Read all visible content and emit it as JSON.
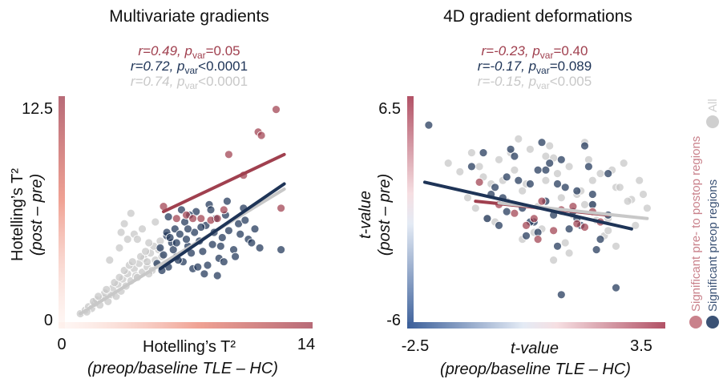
{
  "colors": {
    "red": "#a0404f",
    "navy": "#1e3457",
    "gray": "#c8c8c8"
  },
  "legend": {
    "entries": [
      {
        "label": "Significant pre- to postop regions",
        "color": "#c9818b"
      },
      {
        "label": "Significant preop regions",
        "color": "#3b5275"
      },
      {
        "label": "All",
        "color": "#cfcfcf"
      }
    ],
    "placement": "right, vertical"
  },
  "chart_data": [
    {
      "type": "scatter",
      "title": "Multivariate gradients",
      "stats": [
        {
          "r_text": "r=0.49, ",
          "p_text": "p",
          "p_sub": "var",
          "p_val": "=0.05",
          "color": "#a0404f"
        },
        {
          "r_text": "r=0.72, ",
          "p_text": "p",
          "p_sub": "var",
          "p_val": "<0.0001",
          "color": "#1e3457"
        },
        {
          "r_text": "r=0.74, ",
          "p_text": "p",
          "p_sub": "var",
          "p_val": "<0.0001",
          "color": "#c8c8c8"
        }
      ],
      "xlabel_line1": "Hotelling’s T²",
      "xlabel_line2": "(preop/baseline TLE – HC)",
      "ylabel_line1": "Hotelling’s T²",
      "ylabel_line2": "(post – pre)",
      "xlim": [
        0,
        14
      ],
      "ylim": [
        0,
        12.5
      ],
      "x_tick_labels": [
        "0",
        "14"
      ],
      "y_tick_labels": [
        "0",
        "12.5"
      ],
      "series": [
        {
          "name": "All",
          "color": "#c8c8c8",
          "x": [
            0.5,
            0.8,
            1.0,
            1.2,
            1.4,
            1.5,
            1.7,
            1.9,
            2.0,
            2.2,
            2.4,
            2.5,
            2.7,
            2.8,
            3.0,
            3.1,
            3.3,
            3.4,
            3.6,
            3.8,
            3.9,
            4.1,
            4.3,
            4.4,
            4.6,
            4.8,
            4.9,
            5.1,
            5.3,
            5.5,
            0.9,
            1.3,
            1.6,
            2.1,
            2.6,
            2.9,
            3.2,
            3.5,
            3.7,
            4.0,
            4.2,
            4.5,
            4.7,
            5.0,
            5.2,
            5.4,
            2.3,
            2.9,
            3.4,
            3.8,
            4.3,
            4.7,
            5.1,
            3.0,
            3.6,
            4.0,
            4.6,
            3.2
          ],
          "y": [
            0.3,
            0.5,
            0.7,
            0.6,
            0.9,
            1.1,
            0.8,
            1.2,
            1.5,
            1.0,
            1.4,
            1.8,
            1.3,
            2.0,
            1.6,
            2.3,
            1.9,
            2.6,
            2.2,
            2.9,
            2.5,
            3.2,
            2.7,
            3.5,
            3.0,
            3.8,
            2.8,
            3.4,
            4.0,
            3.6,
            0.4,
            1.0,
            1.3,
            1.7,
            2.1,
            2.4,
            2.8,
            3.1,
            3.3,
            2.4,
            3.6,
            3.9,
            2.6,
            4.2,
            3.1,
            4.5,
            3.4,
            4.1,
            4.6,
            4.9,
            5.2,
            4.4,
            5.6,
            5.0,
            6.1,
            4.6,
            3.3,
            5.5
          ]
        },
        {
          "name": "Significant preop regions",
          "color": "#1e3457",
          "x": [
            5.2,
            5.4,
            5.6,
            5.8,
            5.9,
            6.1,
            6.3,
            6.4,
            6.6,
            6.8,
            6.9,
            7.1,
            7.3,
            7.5,
            7.6,
            7.8,
            8.0,
            8.2,
            8.4,
            8.6,
            8.8,
            9.0,
            9.2,
            9.4,
            9.6,
            9.9,
            10.2,
            10.5,
            10.8,
            11.2,
            5.5,
            5.9,
            6.2,
            6.7,
            7.0,
            7.4,
            7.9,
            8.3,
            8.7,
            9.1,
            9.5,
            10.0,
            10.6,
            11.0,
            5.8,
            6.5,
            7.2,
            8.1,
            9.3,
            10.3,
            6.0,
            7.7,
            8.9,
            11.5,
            12.8,
            6.4,
            7.1,
            8.5
          ],
          "y": [
            3.2,
            4.1,
            3.7,
            4.8,
            3.0,
            4.4,
            5.2,
            3.6,
            4.9,
            3.3,
            5.6,
            4.2,
            3.8,
            5.0,
            6.2,
            4.5,
            3.9,
            5.4,
            6.6,
            4.3,
            5.8,
            3.5,
            4.7,
            6.0,
            5.1,
            4.0,
            5.5,
            6.4,
            4.6,
            5.2,
            2.8,
            5.9,
            4.0,
            6.3,
            4.6,
            2.9,
            5.3,
            3.1,
            5.0,
            4.2,
            6.8,
            3.6,
            5.7,
            4.4,
            5.0,
            3.4,
            6.0,
            2.6,
            3.3,
            4.9,
            4.7,
            3.0,
            2.5,
            4.1,
            4.0,
            4.4,
            5.2,
            6.3
          ]
        },
        {
          "name": "Significant pre- to postop regions",
          "color": "#a0404f",
          "x": [
            5.6,
            6.4,
            7.0,
            7.4,
            7.9,
            8.5,
            8.9,
            9.6,
            9.3,
            10.5,
            11.4,
            11.6,
            12.5,
            12.8
          ],
          "y": [
            6.5,
            5.8,
            6.0,
            5.8,
            5.8,
            5.7,
            5.8,
            9.5,
            6.3,
            8.3,
            10.8,
            10.6,
            12.1,
            6.4
          ]
        }
      ],
      "fits": [
        {
          "name": "Significant pre- to postop regions",
          "color": "#a0404f",
          "x": [
            5.6,
            13.0
          ],
          "y": [
            6.2,
            9.5
          ]
        },
        {
          "name": "All",
          "color": "#c8c8c8",
          "x": [
            0.5,
            13.0
          ],
          "y": [
            0.3,
            7.5
          ]
        },
        {
          "name": "Significant preop regions",
          "color": "#1e3457",
          "x": [
            5.4,
            13.0
          ],
          "y": [
            2.9,
            7.8
          ]
        }
      ]
    },
    {
      "type": "scatter",
      "title": "4D gradient deformations",
      "stats": [
        {
          "r_text": "r=-0.23, ",
          "p_text": "p",
          "p_sub": "var",
          "p_val": "=0.40",
          "color": "#a0404f"
        },
        {
          "r_text": "r=-0.17, ",
          "p_text": "p",
          "p_sub": "var",
          "p_val": "=0.089",
          "color": "#1e3457"
        },
        {
          "r_text": "r=-0.15, ",
          "p_text": "p",
          "p_sub": "var",
          "p_val": "<0.005",
          "color": "#c8c8c8"
        }
      ],
      "xlabel_line1": "t-value",
      "xlabel_line2": "(preop/baseline TLE – HC)",
      "ylabel_line1": "t-value",
      "ylabel_line2": "(post – pre)",
      "xlim": [
        -2.5,
        3.5
      ],
      "ylim": [
        -6,
        6.5
      ],
      "x_tick_labels": [
        "-2.5",
        "3.5"
      ],
      "y_tick_labels": [
        "-6",
        "6.5"
      ],
      "series": [
        {
          "name": "All",
          "color": "#c8c8c8",
          "x": [
            -1.9,
            -1.6,
            -1.3,
            -1.0,
            -0.8,
            -0.6,
            -0.4,
            -0.2,
            0.0,
            0.2,
            0.4,
            0.6,
            0.8,
            1.0,
            1.2,
            1.4,
            1.6,
            1.8,
            2.0,
            2.2,
            2.4,
            2.6,
            2.8,
            3.0,
            3.2,
            -1.4,
            -1.1,
            -0.7,
            -0.3,
            0.1,
            0.5,
            0.9,
            1.3,
            1.7,
            2.1,
            2.5,
            2.9,
            -0.9,
            -0.5,
            0.3,
            0.7,
            1.1,
            1.5,
            1.9,
            2.3,
            2.7,
            3.1,
            -1.2,
            0.0,
            0.6,
            1.2,
            1.8,
            2.4,
            0.8,
            1.6,
            2.2,
            -0.1,
            1.0
          ],
          "y": [
            3.0,
            2.5,
            3.6,
            2.2,
            1.8,
            3.2,
            0.8,
            2.6,
            1.4,
            3.8,
            0.5,
            2.0,
            3.3,
            0.2,
            2.8,
            1.2,
            4.2,
            0.6,
            2.4,
            -0.2,
            1.6,
            3.0,
            0.9,
            2.0,
            0.4,
            1.0,
            2.8,
            -0.4,
            3.6,
            1.8,
            -0.8,
            2.4,
            0.0,
            3.2,
            -1.2,
            1.6,
            -0.6,
            -0.2,
            2.0,
            -1.0,
            4.0,
            -1.6,
            1.4,
            -0.3,
            2.6,
            0.8,
            1.2,
            0.4,
            -1.4,
            3.4,
            -2.2,
            2.0,
            -1.8,
            -2.6,
            0.6,
            -0.9,
            4.4,
            1.0
          ]
        },
        {
          "name": "Significant preop regions",
          "color": "#1e3457",
          "x": [
            -2.4,
            -1.3,
            -1.0,
            -0.8,
            -0.6,
            -0.4,
            -0.2,
            0.0,
            0.2,
            0.4,
            0.6,
            0.8,
            1.0,
            1.2,
            1.4,
            1.6,
            1.8,
            2.0,
            2.2,
            -0.9,
            -0.5,
            -0.1,
            0.3,
            0.7,
            1.1,
            1.5,
            1.9,
            -0.3,
            0.5,
            0.9,
            1.3,
            1.7,
            -0.7,
            0.1,
            1.0,
            2.4,
            0.6,
            1.4,
            -0.4,
            1.8,
            0.2,
            2.2,
            0.9,
            0.4
          ],
          "y": [
            5.2,
            2.8,
            3.6,
            1.2,
            -0.6,
            2.2,
            3.4,
            0.4,
            1.8,
            -1.0,
            2.6,
            0.0,
            3.2,
            -0.8,
            1.4,
            4.0,
            0.6,
            -1.4,
            2.4,
            -0.2,
            1.0,
            2.0,
            -0.4,
            3.0,
            1.6,
            -0.6,
            -2.0,
            3.8,
            4.2,
            -1.8,
            0.2,
            2.8,
            1.6,
            -1.2,
            -4.6,
            -4.2,
            0.8,
            -0.2,
            0.2,
            1.2,
            -0.4,
            0.0,
            1.8,
            2.6
          ]
        },
        {
          "name": "Significant pre- to postop regions",
          "color": "#a0404f",
          "x": [
            -1.1,
            -0.6,
            -0.2,
            0.1,
            0.3,
            0.5,
            0.8,
            1.0,
            1.3,
            1.6,
            1.8,
            2.0,
            0.4,
            1.4
          ],
          "y": [
            1.9,
            0.6,
            0.1,
            -0.6,
            -0.2,
            0.8,
            -0.9,
            0.3,
            0.5,
            -0.7,
            0.2,
            -0.4,
            -1.4,
            -0.5
          ]
        }
      ],
      "fits": [
        {
          "name": "Significant pre- to postop regions",
          "color": "#a0404f",
          "x": [
            -1.2,
            2.2
          ],
          "y": [
            0.8,
            0.0
          ]
        },
        {
          "name": "All",
          "color": "#c8c8c8",
          "x": [
            -0.6,
            3.2
          ],
          "y": [
            0.7,
            -0.2
          ]
        },
        {
          "name": "Significant preop regions",
          "color": "#1e3457",
          "x": [
            -2.5,
            2.8
          ],
          "y": [
            1.9,
            -0.8
          ]
        }
      ]
    }
  ]
}
